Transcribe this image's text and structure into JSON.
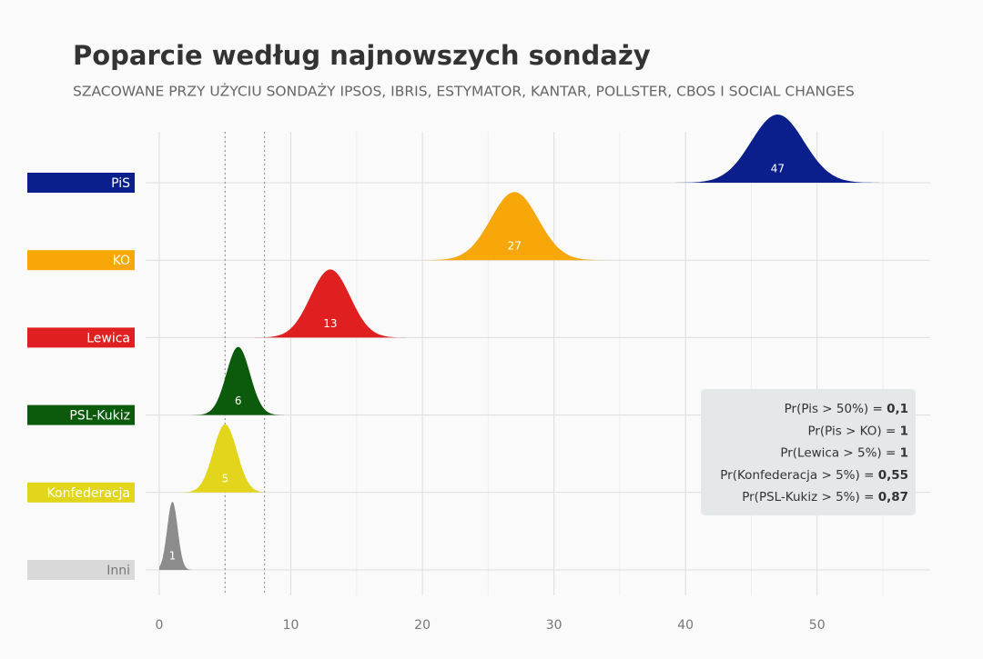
{
  "chart_data": {
    "type": "ridgeline",
    "title": "Poparcie według najnowszych sondaży",
    "subtitle": "SZACOWANE PRZY UŻYCIU SONDAŻY IPSOS, IBRIS, ESTYMATOR, KANTAR, POLLSTER, CBOS I SOCIAL CHANGES",
    "categories": [
      "PiS",
      "KO",
      "Lewica",
      "PSL-Kukiz",
      "Konfederacja",
      "Inni"
    ],
    "values": [
      47,
      27,
      13,
      6,
      5,
      1
    ],
    "sd": [
      2,
      1.8,
      1.5,
      0.9,
      0.9,
      0.4
    ],
    "colors": [
      "#0b1f8c",
      "#f7a707",
      "#e02020",
      "#0c5a0c",
      "#e2d51c",
      "#8c8c8c"
    ],
    "xlim": [
      0,
      58.6
    ],
    "xticks": [
      0,
      10,
      20,
      30,
      40,
      50
    ],
    "minor_xticks": [
      5,
      15,
      25,
      35,
      45,
      55
    ],
    "threshold_lines": [
      5,
      8
    ],
    "grid": true,
    "annotations": {
      "labels": [
        "Pr(Pis > 50%) =",
        "Pr(Pis > KO) =",
        "Pr(Lewica > 5%) =",
        "Pr(Konfederacja > 5%) =",
        "Pr(PSL-Kukiz > 5%) ="
      ],
      "values": [
        0.1,
        1,
        1,
        0.55,
        0.87
      ],
      "value_labels": [
        "0,1",
        "1",
        "1",
        "0,55",
        "0,87"
      ]
    }
  }
}
